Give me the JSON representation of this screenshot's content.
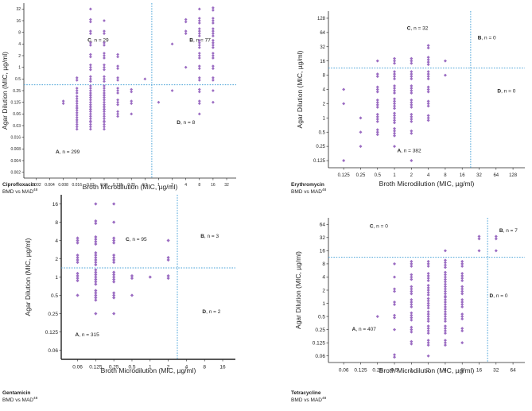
{
  "colors": {
    "point": "#9b6cc2",
    "cutoff": "#4aa3d8",
    "axis": "#222222",
    "text": "#222222"
  },
  "chart_data": [
    {
      "type": "scatter",
      "drug": "Ciprofloxacin",
      "subtitle_main": "BMD vs MAD",
      "subtitle_sup": "48",
      "xlabel": "Broth Microdilution (MIC, µg/ml)",
      "ylabel": "Agar Dilution (MIC, µg/ml)",
      "x_ticks": [
        "0.002",
        "0.004",
        "0.008",
        "0.016",
        "0.03",
        "0.06",
        "0.125",
        "0.25",
        "0.5",
        "1",
        "2",
        "4",
        "8",
        "16",
        "32"
      ],
      "y_ticks": [
        "32",
        "16",
        "8",
        "4",
        "2",
        "1",
        "0.5",
        "0.25",
        "0.125",
        "0.06",
        "0.03",
        "0.016",
        "0.008",
        "0.004",
        "0.002"
      ],
      "breakpoint_x": "0.5",
      "breakpoint_y": "0.5",
      "quadrants": [
        {
          "letter": "C",
          "text": ", n = 29"
        },
        {
          "letter": "B",
          "text": ", n = 77"
        },
        {
          "letter": "D",
          "text": ", n = 8"
        },
        {
          "letter": "A",
          "text": ", n = 299"
        }
      ],
      "points": [
        {
          "x": "0.008",
          "y": "0.125",
          "n": 2
        },
        {
          "x": "0.016",
          "y": "0.5",
          "n": 2
        },
        {
          "x": "0.016",
          "y": "0.25",
          "n": 3
        },
        {
          "x": "0.016",
          "y": "0.125",
          "n": 6
        },
        {
          "x": "0.016",
          "y": "0.06",
          "n": 6
        },
        {
          "x": "0.016",
          "y": "0.03",
          "n": 4
        },
        {
          "x": "0.03",
          "y": "32",
          "n": 1
        },
        {
          "x": "0.03",
          "y": "16",
          "n": 2
        },
        {
          "x": "0.03",
          "y": "8",
          "n": 2
        },
        {
          "x": "0.03",
          "y": "4",
          "n": 2
        },
        {
          "x": "0.03",
          "y": "2",
          "n": 2
        },
        {
          "x": "0.03",
          "y": "1",
          "n": 3
        },
        {
          "x": "0.03",
          "y": "0.5",
          "n": 3
        },
        {
          "x": "0.03",
          "y": "0.25",
          "n": 5
        },
        {
          "x": "0.03",
          "y": "0.125",
          "n": 7
        },
        {
          "x": "0.03",
          "y": "0.06",
          "n": 7
        },
        {
          "x": "0.03",
          "y": "0.03",
          "n": 4
        },
        {
          "x": "0.06",
          "y": "16",
          "n": 1
        },
        {
          "x": "0.06",
          "y": "8",
          "n": 2
        },
        {
          "x": "0.06",
          "y": "4",
          "n": 2
        },
        {
          "x": "0.06",
          "y": "2",
          "n": 3
        },
        {
          "x": "0.06",
          "y": "1",
          "n": 3
        },
        {
          "x": "0.06",
          "y": "0.5",
          "n": 3
        },
        {
          "x": "0.06",
          "y": "0.25",
          "n": 5
        },
        {
          "x": "0.06",
          "y": "0.125",
          "n": 7
        },
        {
          "x": "0.06",
          "y": "0.06",
          "n": 7
        },
        {
          "x": "0.06",
          "y": "0.03",
          "n": 4
        },
        {
          "x": "0.125",
          "y": "2",
          "n": 2
        },
        {
          "x": "0.125",
          "y": "1",
          "n": 2
        },
        {
          "x": "0.125",
          "y": "0.5",
          "n": 2
        },
        {
          "x": "0.125",
          "y": "0.25",
          "n": 3
        },
        {
          "x": "0.125",
          "y": "0.125",
          "n": 3
        },
        {
          "x": "0.125",
          "y": "0.06",
          "n": 3
        },
        {
          "x": "0.25",
          "y": "0.25",
          "n": 2
        },
        {
          "x": "0.25",
          "y": "0.125",
          "n": 2
        },
        {
          "x": "0.25",
          "y": "0.06",
          "n": 1
        },
        {
          "x": "0.5",
          "y": "0.5",
          "n": 1
        },
        {
          "x": "1",
          "y": "0.125",
          "n": 1
        },
        {
          "x": "2",
          "y": "0.25",
          "n": 1
        },
        {
          "x": "2",
          "y": "4",
          "n": 1
        },
        {
          "x": "4",
          "y": "16",
          "n": 2
        },
        {
          "x": "4",
          "y": "8",
          "n": 2
        },
        {
          "x": "4",
          "y": "1",
          "n": 1
        },
        {
          "x": "8",
          "y": "32",
          "n": 1
        },
        {
          "x": "8",
          "y": "16",
          "n": 3
        },
        {
          "x": "8",
          "y": "8",
          "n": 4
        },
        {
          "x": "8",
          "y": "4",
          "n": 4
        },
        {
          "x": "8",
          "y": "2",
          "n": 3
        },
        {
          "x": "8",
          "y": "1",
          "n": 2
        },
        {
          "x": "8",
          "y": "0.5",
          "n": 2
        },
        {
          "x": "8",
          "y": "0.25",
          "n": 2
        },
        {
          "x": "8",
          "y": "0.125",
          "n": 2
        },
        {
          "x": "8",
          "y": "0.06",
          "n": 1
        },
        {
          "x": "16",
          "y": "32",
          "n": 2
        },
        {
          "x": "16",
          "y": "16",
          "n": 3
        },
        {
          "x": "16",
          "y": "8",
          "n": 4
        },
        {
          "x": "16",
          "y": "4",
          "n": 4
        },
        {
          "x": "16",
          "y": "2",
          "n": 3
        },
        {
          "x": "16",
          "y": "1",
          "n": 2
        },
        {
          "x": "16",
          "y": "0.5",
          "n": 2
        },
        {
          "x": "16",
          "y": "0.25",
          "n": 1
        },
        {
          "x": "16",
          "y": "0.125",
          "n": 1
        }
      ]
    },
    {
      "type": "scatter",
      "drug": "Erythromycin",
      "subtitle_main": "BMD vs MAD",
      "subtitle_sup": "48",
      "xlabel": "Broth Microdilution (MIC, µg/ml)",
      "ylabel": "Agar Dilution (MIC, µg/ml)",
      "x_ticks": [
        "0.125",
        "0.25",
        "0.5",
        "1",
        "2",
        "4",
        "8",
        "16",
        "32",
        "64",
        "128"
      ],
      "y_ticks": [
        "128",
        "64",
        "32",
        "16",
        "8",
        "4",
        "2",
        "1",
        "0.5",
        "0.25",
        "0.125"
      ],
      "breakpoint_x": "16",
      "breakpoint_y": "16",
      "quadrants": [
        {
          "letter": "C",
          "text": ", n = 32"
        },
        {
          "letter": "B",
          "text": ", n = 0"
        },
        {
          "letter": "D",
          "text": ", n = 0"
        },
        {
          "letter": "A",
          "text": ", n = 382"
        }
      ],
      "points": [
        {
          "x": "0.125",
          "y": "4",
          "n": 1
        },
        {
          "x": "0.125",
          "y": "2",
          "n": 1
        },
        {
          "x": "0.125",
          "y": "0.125",
          "n": 1
        },
        {
          "x": "0.25",
          "y": "1",
          "n": 1
        },
        {
          "x": "0.25",
          "y": "0.5",
          "n": 1
        },
        {
          "x": "0.25",
          "y": "0.25",
          "n": 1
        },
        {
          "x": "0.5",
          "y": "16",
          "n": 1
        },
        {
          "x": "0.5",
          "y": "8",
          "n": 2
        },
        {
          "x": "0.5",
          "y": "4",
          "n": 3
        },
        {
          "x": "0.5",
          "y": "2",
          "n": 4
        },
        {
          "x": "0.5",
          "y": "1",
          "n": 4
        },
        {
          "x": "0.5",
          "y": "0.5",
          "n": 3
        },
        {
          "x": "1",
          "y": "16",
          "n": 3
        },
        {
          "x": "1",
          "y": "8",
          "n": 4
        },
        {
          "x": "1",
          "y": "4",
          "n": 4
        },
        {
          "x": "1",
          "y": "2",
          "n": 5
        },
        {
          "x": "1",
          "y": "1",
          "n": 5
        },
        {
          "x": "1",
          "y": "0.5",
          "n": 4
        },
        {
          "x": "1",
          "y": "0.25",
          "n": 1
        },
        {
          "x": "2",
          "y": "16",
          "n": 3
        },
        {
          "x": "2",
          "y": "8",
          "n": 4
        },
        {
          "x": "2",
          "y": "4",
          "n": 4
        },
        {
          "x": "2",
          "y": "2",
          "n": 4
        },
        {
          "x": "2",
          "y": "1",
          "n": 4
        },
        {
          "x": "2",
          "y": "0.5",
          "n": 2
        },
        {
          "x": "2",
          "y": "0.125",
          "n": 1
        },
        {
          "x": "4",
          "y": "32",
          "n": 2
        },
        {
          "x": "4",
          "y": "16",
          "n": 4
        },
        {
          "x": "4",
          "y": "8",
          "n": 4
        },
        {
          "x": "4",
          "y": "4",
          "n": 3
        },
        {
          "x": "4",
          "y": "2",
          "n": 3
        },
        {
          "x": "4",
          "y": "1",
          "n": 3
        },
        {
          "x": "8",
          "y": "16",
          "n": 1
        },
        {
          "x": "8",
          "y": "8",
          "n": 1
        }
      ]
    },
    {
      "type": "scatter",
      "drug": "Gentamicin",
      "subtitle_main": "BMD vs MAD",
      "subtitle_sup": "48",
      "xlabel": "Broth Microdilution (MIC, µg/ml)",
      "ylabel": "Agar Dilution (MIC, µg/ml)",
      "x_ticks": [
        "0.06",
        "0.125",
        "0.25",
        "0.5",
        "1",
        "2",
        "4",
        "8",
        "16"
      ],
      "y_ticks": [
        "16",
        "8",
        "4",
        "2",
        "1",
        "0.5",
        "0.25",
        "0.125",
        "0.06"
      ],
      "breakpoint_x": "2",
      "breakpoint_y": "2",
      "quadrants": [
        {
          "letter": "C",
          "text": ", n = 95"
        },
        {
          "letter": "B",
          "text": ", n = 3"
        },
        {
          "letter": "D",
          "text": ", n = 2"
        },
        {
          "letter": "A",
          "text": ", n = 315"
        }
      ],
      "points": [
        {
          "x": "0.06",
          "y": "4",
          "n": 3
        },
        {
          "x": "0.06",
          "y": "2",
          "n": 4
        },
        {
          "x": "0.06",
          "y": "1",
          "n": 4
        },
        {
          "x": "0.06",
          "y": "0.5",
          "n": 1
        },
        {
          "x": "0.125",
          "y": "16",
          "n": 1
        },
        {
          "x": "0.125",
          "y": "8",
          "n": 2
        },
        {
          "x": "0.125",
          "y": "4",
          "n": 4
        },
        {
          "x": "0.125",
          "y": "2",
          "n": 6
        },
        {
          "x": "0.125",
          "y": "1",
          "n": 7
        },
        {
          "x": "0.125",
          "y": "0.5",
          "n": 5
        },
        {
          "x": "0.125",
          "y": "0.25",
          "n": 1
        },
        {
          "x": "0.25",
          "y": "16",
          "n": 1
        },
        {
          "x": "0.25",
          "y": "8",
          "n": 1
        },
        {
          "x": "0.25",
          "y": "4",
          "n": 3
        },
        {
          "x": "0.25",
          "y": "2",
          "n": 4
        },
        {
          "x": "0.25",
          "y": "1",
          "n": 5
        },
        {
          "x": "0.25",
          "y": "0.5",
          "n": 3
        },
        {
          "x": "0.25",
          "y": "0.25",
          "n": 1
        },
        {
          "x": "0.5",
          "y": "1",
          "n": 2
        },
        {
          "x": "0.5",
          "y": "0.5",
          "n": 1
        },
        {
          "x": "1",
          "y": "1",
          "n": 1
        },
        {
          "x": "2",
          "y": "4",
          "n": 1
        },
        {
          "x": "2",
          "y": "2",
          "n": 2
        },
        {
          "x": "2",
          "y": "1",
          "n": 2
        }
      ]
    },
    {
      "type": "scatter",
      "drug": "Tetracycline",
      "subtitle_main": "BMD vs MAD",
      "subtitle_sup": "48",
      "xlabel": "Broth Microdilution (MIC, µg/ml)",
      "ylabel": "Agar Dilution (MIC, µg/ml)",
      "x_ticks": [
        "0.06",
        "0.125",
        "0.25",
        "0.5",
        "1",
        "2",
        "4",
        "8",
        "16",
        "32",
        "64"
      ],
      "y_ticks": [
        "64",
        "32",
        "16",
        "8",
        "4",
        "2",
        "1",
        "0.5",
        "0.25",
        "0.125",
        "0.06"
      ],
      "breakpoint_x": "16",
      "breakpoint_y": "16",
      "quadrants": [
        {
          "letter": "C",
          "text": ", n = 0"
        },
        {
          "letter": "B",
          "text": ", n = 7"
        },
        {
          "letter": "D",
          "text": ", n = 0"
        },
        {
          "letter": "A",
          "text": ", n = 407"
        }
      ],
      "points": [
        {
          "x": "0.25",
          "y": "0.5",
          "n": 1
        },
        {
          "x": "0.5",
          "y": "8",
          "n": 1
        },
        {
          "x": "0.5",
          "y": "4",
          "n": 1
        },
        {
          "x": "0.5",
          "y": "2",
          "n": 2
        },
        {
          "x": "0.5",
          "y": "1",
          "n": 2
        },
        {
          "x": "0.5",
          "y": "0.5",
          "n": 2
        },
        {
          "x": "0.5",
          "y": "0.25",
          "n": 1
        },
        {
          "x": "0.5",
          "y": "0.06",
          "n": 2
        },
        {
          "x": "1",
          "y": "8",
          "n": 3
        },
        {
          "x": "1",
          "y": "4",
          "n": 3
        },
        {
          "x": "1",
          "y": "2",
          "n": 4
        },
        {
          "x": "1",
          "y": "1",
          "n": 4
        },
        {
          "x": "1",
          "y": "0.5",
          "n": 4
        },
        {
          "x": "1",
          "y": "0.25",
          "n": 3
        },
        {
          "x": "1",
          "y": "0.125",
          "n": 2
        },
        {
          "x": "2",
          "y": "8",
          "n": 3
        },
        {
          "x": "2",
          "y": "4",
          "n": 4
        },
        {
          "x": "2",
          "y": "2",
          "n": 5
        },
        {
          "x": "2",
          "y": "1",
          "n": 5
        },
        {
          "x": "2",
          "y": "0.5",
          "n": 5
        },
        {
          "x": "2",
          "y": "0.25",
          "n": 4
        },
        {
          "x": "2",
          "y": "0.125",
          "n": 3
        },
        {
          "x": "2",
          "y": "0.06",
          "n": 1
        },
        {
          "x": "4",
          "y": "16",
          "n": 1
        },
        {
          "x": "4",
          "y": "8",
          "n": 4
        },
        {
          "x": "4",
          "y": "4",
          "n": 5
        },
        {
          "x": "4",
          "y": "2",
          "n": 6
        },
        {
          "x": "4",
          "y": "1",
          "n": 6
        },
        {
          "x": "4",
          "y": "0.5",
          "n": 5
        },
        {
          "x": "4",
          "y": "0.25",
          "n": 4
        },
        {
          "x": "4",
          "y": "0.125",
          "n": 3
        },
        {
          "x": "8",
          "y": "8",
          "n": 3
        },
        {
          "x": "8",
          "y": "4",
          "n": 4
        },
        {
          "x": "8",
          "y": "2",
          "n": 4
        },
        {
          "x": "8",
          "y": "1",
          "n": 4
        },
        {
          "x": "8",
          "y": "0.5",
          "n": 3
        },
        {
          "x": "8",
          "y": "0.25",
          "n": 2
        },
        {
          "x": "8",
          "y": "0.125",
          "n": 1
        },
        {
          "x": "16",
          "y": "32",
          "n": 2
        },
        {
          "x": "16",
          "y": "16",
          "n": 1
        },
        {
          "x": "32",
          "y": "32",
          "n": 2
        },
        {
          "x": "32",
          "y": "16",
          "n": 1
        }
      ]
    }
  ]
}
